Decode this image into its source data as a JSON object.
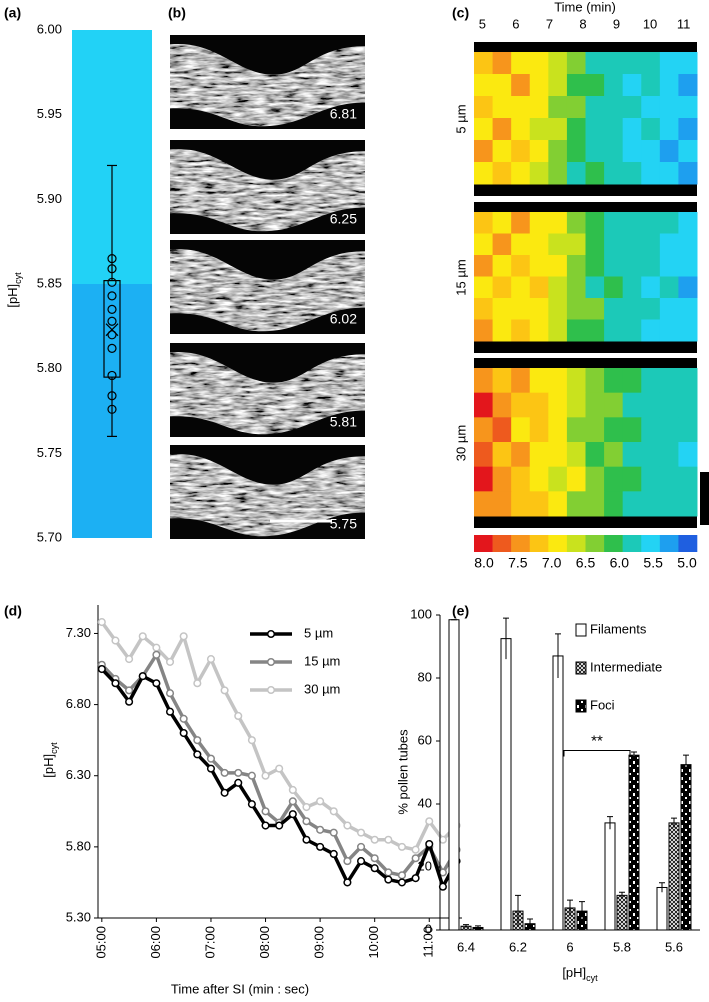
{
  "chart_data": [
    {
      "type": "box",
      "panel": "(a)",
      "ylabel": "[pH]",
      "ylabel_sub": "cyt",
      "ylim": [
        5.7,
        6.0
      ],
      "yticks": [
        {
          "value": 5.7,
          "label": "5.70"
        },
        5.75,
        {
          "value": 5.8,
          "label": "5.80"
        },
        5.85,
        {
          "value": 5.9,
          "label": "5.90"
        },
        5.95,
        {
          "value": 6,
          "label": "6.00"
        }
      ],
      "bands": [
        {
          "from": 5.7,
          "to": 5.85,
          "color": "#1cb0f3"
        },
        {
          "from": 5.85,
          "to": 6.0,
          "color": "#22d2f6"
        }
      ],
      "whisker_low": 5.76,
      "q1": 5.795,
      "mean": 5.823,
      "q3": 5.852,
      "whisker_high": 5.92,
      "points": [
        5.865,
        5.859,
        5.851,
        5.843,
        5.835,
        5.828,
        5.82,
        5.812,
        5.796,
        5.784,
        5.776
      ],
      "color": "#000000"
    },
    {
      "type": "image",
      "panel": "(b)",
      "values": [
        6.81,
        6.25,
        6.02,
        5.81,
        5.75
      ]
    },
    {
      "type": "heatmap",
      "panel": "(c)",
      "xlabel": "Time (min)",
      "xlim": [
        4.75,
        11.4
      ],
      "xticks": [
        5,
        6,
        7,
        8,
        9,
        10,
        11
      ],
      "clim": [
        8.0,
        5.0
      ],
      "colors": [
        "#e3161c",
        "#ee5a1e",
        "#f7951c",
        "#fcc514",
        "#fbe910",
        "#c9e21e",
        "#82cf33",
        "#2fbf4c",
        "#1cc9b8",
        "#23d3f4",
        "#1e9fef",
        "#1f5fe0"
      ],
      "cticks": [
        {
          "value": 8,
          "label": "8.0"
        },
        7.5,
        {
          "value": 7,
          "label": "7.0"
        },
        6.5,
        {
          "value": 6,
          "label": "6.0"
        },
        5.5,
        {
          "value": 5,
          "label": "5.0"
        }
      ],
      "rows": [
        {
          "label": "5 µm",
          "values": [
            [
              7.1,
              7.3,
              6.9,
              7.0,
              6.7,
              6.3,
              6.0,
              5.9,
              5.8,
              5.8,
              5.7,
              5.6
            ],
            [
              6.9,
              7.0,
              7.4,
              6.8,
              6.6,
              6.2,
              6.1,
              5.8,
              5.7,
              5.9,
              5.6,
              5.5
            ],
            [
              7.2,
              6.8,
              7.0,
              6.9,
              6.4,
              6.4,
              5.9,
              6.0,
              5.8,
              5.7,
              5.6,
              5.7
            ],
            [
              7.0,
              7.5,
              6.8,
              6.6,
              6.6,
              6.1,
              6.0,
              5.8,
              5.6,
              5.8,
              5.7,
              5.5
            ],
            [
              7.3,
              6.9,
              7.1,
              6.9,
              6.5,
              6.2,
              5.9,
              5.9,
              5.7,
              5.6,
              5.5,
              5.6
            ],
            [
              6.8,
              7.2,
              6.9,
              6.7,
              6.3,
              6.0,
              6.1,
              5.8,
              5.8,
              5.7,
              5.6,
              5.4
            ]
          ]
        },
        {
          "label": "15 µm",
          "values": [
            [
              7.2,
              7.0,
              7.3,
              6.9,
              6.8,
              6.5,
              6.2,
              6.0,
              5.9,
              5.8,
              5.8,
              5.6
            ],
            [
              7.0,
              7.3,
              6.9,
              7.0,
              6.6,
              6.6,
              6.1,
              5.9,
              6.0,
              5.8,
              5.7,
              5.7
            ],
            [
              7.4,
              6.9,
              7.1,
              6.8,
              6.9,
              6.3,
              6.2,
              6.0,
              5.8,
              5.9,
              5.6,
              5.6
            ],
            [
              6.9,
              7.2,
              7.0,
              7.1,
              6.7,
              6.4,
              6.0,
              6.1,
              5.9,
              5.7,
              5.8,
              5.5
            ],
            [
              7.1,
              7.0,
              6.8,
              6.9,
              6.6,
              6.5,
              6.3,
              5.9,
              5.8,
              5.8,
              5.6,
              5.7
            ],
            [
              7.3,
              6.9,
              7.2,
              6.8,
              6.7,
              6.2,
              6.1,
              6.0,
              5.9,
              5.7,
              5.7,
              5.6
            ]
          ]
        },
        {
          "label": "30 µm",
          "values": [
            [
              7.5,
              7.2,
              7.3,
              7.0,
              6.9,
              6.6,
              6.4,
              6.2,
              6.1,
              6.0,
              5.9,
              5.8
            ],
            [
              7.8,
              7.4,
              7.1,
              7.2,
              6.8,
              6.7,
              6.3,
              6.3,
              6.0,
              5.9,
              6.0,
              5.8
            ],
            [
              7.3,
              7.6,
              7.0,
              7.1,
              6.9,
              6.5,
              6.5,
              6.1,
              6.2,
              5.9,
              5.8,
              5.9
            ],
            [
              7.6,
              7.1,
              7.4,
              6.9,
              7.0,
              6.6,
              6.2,
              6.3,
              6.0,
              6.0,
              5.9,
              5.7
            ],
            [
              7.9,
              7.3,
              7.2,
              7.0,
              6.7,
              6.8,
              6.4,
              6.1,
              6.1,
              5.8,
              5.9,
              5.8
            ],
            [
              7.4,
              7.5,
              7.1,
              7.2,
              6.8,
              6.5,
              6.3,
              6.2,
              6.0,
              6.0,
              5.8,
              5.9
            ]
          ]
        }
      ]
    },
    {
      "type": "line",
      "panel": "(d)",
      "xlabel": "Time after SI (min : sec)",
      "ylabel": "[pH]",
      "ylabel_sub": "cyt",
      "x": [
        5,
        5.25,
        5.5,
        5.75,
        6,
        6.25,
        6.5,
        6.75,
        7,
        7.25,
        7.5,
        7.75,
        8,
        8.25,
        8.5,
        8.75,
        9,
        9.25,
        9.5,
        9.75,
        10,
        10.25,
        10.5,
        10.75,
        11,
        11.25,
        11.5
      ],
      "xlim": [
        4.93,
        11.6
      ],
      "xticks": [
        {
          "value": 5,
          "label": "05:00"
        },
        {
          "value": 6,
          "label": "06:00"
        },
        {
          "value": 7,
          "label": "07:00"
        },
        {
          "value": 8,
          "label": "08:00"
        },
        {
          "value": 9,
          "label": "09:00"
        },
        {
          "value": 10,
          "label": "10:00"
        },
        {
          "value": 11,
          "label": "11:00"
        }
      ],
      "ylim": [
        5.3,
        7.5
      ],
      "yticks": [
        {
          "value": 5.3,
          "label": "5.30"
        },
        {
          "value": 5.8,
          "label": "5.80"
        },
        {
          "value": 6.3,
          "label": "6.30"
        },
        {
          "value": 6.8,
          "label": "6.80"
        },
        {
          "value": 7.3,
          "label": "7.30"
        }
      ],
      "legend": "upper right",
      "series": [
        {
          "name": "5 µm",
          "color": "#000000",
          "values": [
            7.05,
            6.95,
            6.82,
            7.0,
            6.95,
            6.75,
            6.6,
            6.45,
            6.35,
            6.18,
            6.25,
            6.1,
            5.95,
            5.95,
            6.03,
            5.85,
            5.8,
            5.75,
            5.55,
            5.7,
            5.65,
            5.57,
            5.55,
            5.58,
            5.82,
            5.52,
            5.7
          ]
        },
        {
          "name": "15 µm",
          "color": "#858585",
          "values": [
            7.08,
            6.98,
            6.9,
            7.0,
            7.15,
            6.88,
            6.7,
            6.55,
            6.42,
            6.32,
            6.32,
            6.3,
            6.05,
            5.97,
            6.12,
            5.98,
            5.92,
            5.9,
            5.7,
            5.8,
            5.72,
            5.62,
            5.6,
            5.72,
            5.8,
            5.62,
            5.78
          ]
        },
        {
          "name": "30 µm",
          "color": "#c4c4c4",
          "values": [
            7.38,
            7.25,
            7.12,
            7.28,
            7.2,
            7.1,
            7.28,
            6.95,
            7.12,
            6.9,
            6.72,
            6.55,
            6.3,
            6.35,
            6.2,
            6.08,
            6.12,
            6.05,
            5.95,
            5.9,
            5.85,
            5.85,
            5.8,
            5.78,
            5.98,
            5.85,
            5.95
          ]
        }
      ]
    },
    {
      "type": "bar",
      "panel": "(e)",
      "xlabel": "[pH]",
      "xlabel_sub": "cyt",
      "ylabel": "% pollen tubes",
      "categories": [
        "6.4",
        "6.2",
        "6",
        "5.8",
        "5.6"
      ],
      "ylim": [
        0,
        100
      ],
      "yticks": [
        0,
        20,
        40,
        60,
        80,
        100
      ],
      "legend": "upper right",
      "series": [
        {
          "name": "Filaments",
          "color": "#000000",
          "pattern": "white",
          "values": [
            98.5,
            92.5,
            87,
            34,
            13.5
          ],
          "errors": [
            0,
            6.5,
            7,
            2,
            1.5
          ]
        },
        {
          "name": "Intermediate",
          "color": "#000000",
          "pattern": "crosshatch",
          "values": [
            1.2,
            6,
            7,
            11,
            34
          ],
          "errors": [
            0.5,
            5,
            2.5,
            1,
            1.5
          ]
        },
        {
          "name": "Foci",
          "color": "#000000",
          "pattern": "dashed",
          "values": [
            0.8,
            2,
            6,
            55.5,
            52.5
          ],
          "errors": [
            0.5,
            1.5,
            3,
            1,
            3
          ]
        }
      ],
      "annotations": [
        {
          "text": "**",
          "y": 57,
          "between": [
            "6",
            "5.8"
          ]
        }
      ]
    }
  ]
}
